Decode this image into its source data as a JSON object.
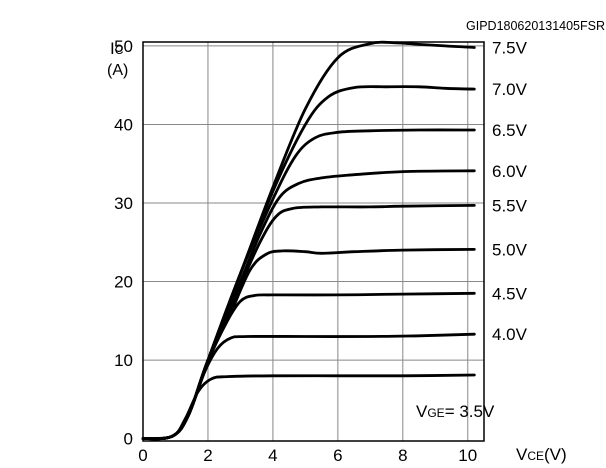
{
  "chart_data": {
    "type": "line",
    "code": "GIPD180620131405FSR",
    "ylabel": {
      "symbol": "I",
      "sub": "C",
      "unit": "(A)"
    },
    "xlabel": {
      "symbol": "V",
      "sub": "CE",
      "unit": "(V)"
    },
    "legend_prefix": {
      "symbol": "V",
      "sub": "GE",
      "rest": "= "
    },
    "xlim": [
      0,
      10.5
    ],
    "ylim": [
      -0.3,
      50.5
    ],
    "xticks": [
      0,
      2,
      4,
      6,
      8,
      10
    ],
    "yticks": [
      0,
      10,
      20,
      30,
      40,
      50
    ],
    "xtick_labels": [
      "0",
      "2",
      "4",
      "6",
      "8",
      "10"
    ],
    "ytick_labels": [
      "0",
      "10",
      "20",
      "30",
      "40",
      "50"
    ],
    "grid": true,
    "series": [
      {
        "name": "7.5V",
        "points": [
          [
            0,
            0
          ],
          [
            0.9,
            0.3
          ],
          [
            1.4,
            3
          ],
          [
            2,
            10
          ],
          [
            3,
            21
          ],
          [
            4,
            32
          ],
          [
            5,
            42
          ],
          [
            6,
            48.5
          ],
          [
            7,
            50.3
          ],
          [
            7.8,
            50.4
          ],
          [
            8.5,
            50.2
          ],
          [
            9.3,
            50
          ],
          [
            10.2,
            49.8
          ]
        ]
      },
      {
        "name": "7.0V",
        "points": [
          [
            0,
            0
          ],
          [
            0.9,
            0.3
          ],
          [
            1.4,
            3
          ],
          [
            2,
            10
          ],
          [
            3,
            21
          ],
          [
            4,
            31.5
          ],
          [
            5,
            40
          ],
          [
            5.7,
            43.5
          ],
          [
            6.5,
            44.7
          ],
          [
            7.5,
            44.8
          ],
          [
            8.5,
            44.8
          ],
          [
            9.3,
            44.6
          ],
          [
            10.2,
            44.5
          ]
        ]
      },
      {
        "name": "6.5V",
        "points": [
          [
            0,
            0
          ],
          [
            0.9,
            0.3
          ],
          [
            1.4,
            3
          ],
          [
            2,
            10
          ],
          [
            3,
            21
          ],
          [
            4,
            30.5
          ],
          [
            4.7,
            36
          ],
          [
            5.3,
            38.3
          ],
          [
            6,
            39
          ],
          [
            7,
            39.2
          ],
          [
            8.5,
            39.3
          ],
          [
            10.2,
            39.3
          ]
        ]
      },
      {
        "name": "6.0V",
        "points": [
          [
            0,
            0
          ],
          [
            0.9,
            0.3
          ],
          [
            1.4,
            3
          ],
          [
            2,
            10
          ],
          [
            3,
            20
          ],
          [
            3.6,
            26
          ],
          [
            4.2,
            30.7
          ],
          [
            4.8,
            32.5
          ],
          [
            5.5,
            33.2
          ],
          [
            6.5,
            33.6
          ],
          [
            8,
            34
          ],
          [
            10.2,
            34.1
          ]
        ]
      },
      {
        "name": "5.5V",
        "points": [
          [
            0,
            0
          ],
          [
            0.9,
            0.3
          ],
          [
            1.4,
            3
          ],
          [
            2,
            10
          ],
          [
            3,
            19.5
          ],
          [
            3.6,
            25
          ],
          [
            4.1,
            28.3
          ],
          [
            4.6,
            29.3
          ],
          [
            5.5,
            29.5
          ],
          [
            7,
            29.5
          ],
          [
            8,
            29.6
          ],
          [
            10.2,
            29.7
          ]
        ]
      },
      {
        "name": "5.0V",
        "points": [
          [
            0,
            0
          ],
          [
            0.9,
            0.3
          ],
          [
            1.4,
            3
          ],
          [
            2,
            10
          ],
          [
            2.7,
            16
          ],
          [
            3.3,
            21.5
          ],
          [
            3.8,
            23.5
          ],
          [
            4.3,
            23.9
          ],
          [
            5,
            23.8
          ],
          [
            5.5,
            23.6
          ],
          [
            6.5,
            23.8
          ],
          [
            8,
            24
          ],
          [
            10.2,
            24.1
          ]
        ]
      },
      {
        "name": "4.5V",
        "points": [
          [
            0,
            0
          ],
          [
            0.9,
            0.3
          ],
          [
            1.4,
            3
          ],
          [
            2,
            9.8
          ],
          [
            2.6,
            15
          ],
          [
            3,
            17.5
          ],
          [
            3.4,
            18.2
          ],
          [
            4,
            18.3
          ],
          [
            6,
            18.3
          ],
          [
            8,
            18.4
          ],
          [
            10.2,
            18.5
          ]
        ]
      },
      {
        "name": "4.0V",
        "points": [
          [
            0,
            0
          ],
          [
            0.9,
            0.3
          ],
          [
            1.4,
            3
          ],
          [
            1.9,
            8.5
          ],
          [
            2.3,
            11.5
          ],
          [
            2.7,
            12.8
          ],
          [
            3.2,
            13
          ],
          [
            5,
            13
          ],
          [
            7,
            13
          ],
          [
            8.5,
            13.1
          ],
          [
            10.2,
            13.3
          ]
        ]
      },
      {
        "name": "3.5V",
        "points": [
          [
            0,
            0
          ],
          [
            0.9,
            0.3
          ],
          [
            1.3,
            2.5
          ],
          [
            1.7,
            6
          ],
          [
            2.1,
            7.6
          ],
          [
            2.6,
            7.9
          ],
          [
            4,
            8
          ],
          [
            6,
            8
          ],
          [
            8,
            8
          ],
          [
            10.2,
            8.1
          ]
        ]
      }
    ],
    "line_color": "#000000",
    "grid_color": "#888888"
  }
}
